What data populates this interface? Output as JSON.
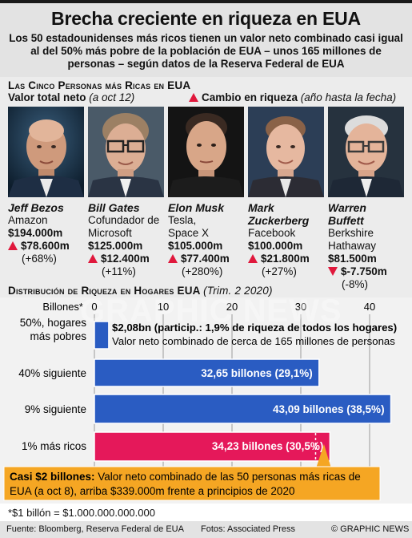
{
  "header": {
    "title": "Brecha creciente en riqueza en EUA",
    "subtitle": "Los 50 estadounidenses más ricos tienen un valor neto combinado casi igual al del 50% más pobre de la población de EUA – unos 165 millones de personas – según datos de la Reserva Federal de EUA"
  },
  "top_section": {
    "title": "Las Cinco Personas más Ricas en EUA",
    "net_worth_label": "Valor total neto",
    "net_worth_note": "(a oct 12)",
    "change_label": "Cambio en riqueza",
    "change_note": "(año hasta la fecha)",
    "people": [
      {
        "name": "Jeff Bezos",
        "company": "Amazon",
        "net_worth": "$194.000m",
        "change": "$78.600m",
        "change_pct": "(+68%)",
        "direction": "up"
      },
      {
        "name": "Bill Gates",
        "company": "Cofundador de Microsoft",
        "net_worth": "$125.000m",
        "change": "$12.400m",
        "change_pct": "(+11%)",
        "direction": "up"
      },
      {
        "name": "Elon Musk",
        "company": "Tesla, Space X",
        "net_worth": "$105.000m",
        "change": "$77.400m",
        "change_pct": "(+280%)",
        "direction": "up"
      },
      {
        "name": "Mark Zuckerberg",
        "company": "Facebook",
        "net_worth": "$100.000m",
        "change": "$21.800m",
        "change_pct": "(+27%)",
        "direction": "up"
      },
      {
        "name": "Warren Buffett",
        "company": "Berkshire Hathaway",
        "net_worth": "$81.500m",
        "change": "$-7.750m",
        "change_pct": "(-8%)",
        "direction": "down"
      }
    ]
  },
  "chart_section": {
    "title": "Distribución de Riqueza en Hogares EUA",
    "note": "(Trim. 2 2020)"
  },
  "chart_data": {
    "type": "bar",
    "orientation": "horizontal",
    "title": "Distribución de Riqueza en Hogares EUA (Trim. 2 2020)",
    "axis_label": "Billones*",
    "ticks": [
      0,
      10,
      20,
      30,
      40
    ],
    "xlim": [
      0,
      45
    ],
    "grid": true,
    "categories": [
      "50%, hogares más pobres",
      "40% siguiente",
      "9% siguiente",
      "1% más ricos"
    ],
    "values": [
      2.08,
      32.65,
      43.09,
      34.23
    ],
    "value_labels": [
      "",
      "32,65 billones (29,1%)",
      "43,09 billones (38,5%)",
      "34,23 billones (30,5%)"
    ],
    "bar_colors": [
      "#2a5cc2",
      "#2a5cc2",
      "#2a5cc2",
      "#e5185a"
    ],
    "marker_value": 32.15,
    "bottom_annotation": {
      "bold": "$2,08bn (particip.: 1,9% de riqueza de todos los hogares)",
      "text": "Valor neto combinado de cerca de 165 millones de personas"
    },
    "callout": {
      "bold": "Casi $2 billones:",
      "text": "Valor neto combinado de las 50 personas más ricas de EUA (a oct 8), arriba $339.000m frente a principios de 2020"
    }
  },
  "footnote": "*$1 billón = $1.000.000.000.000",
  "footer": {
    "source": "Fuente: Bloomberg, Reserva Federal de EUA",
    "photos": "Fotos: Associated Press",
    "credit": "© GRAPHIC NEWS"
  },
  "watermark": "GRAPHIC NEWS",
  "colors": {
    "accent_red": "#e0183c",
    "bar_blue": "#2a5cc2",
    "bar_pink": "#e5185a",
    "callout_orange": "#f5a623"
  }
}
